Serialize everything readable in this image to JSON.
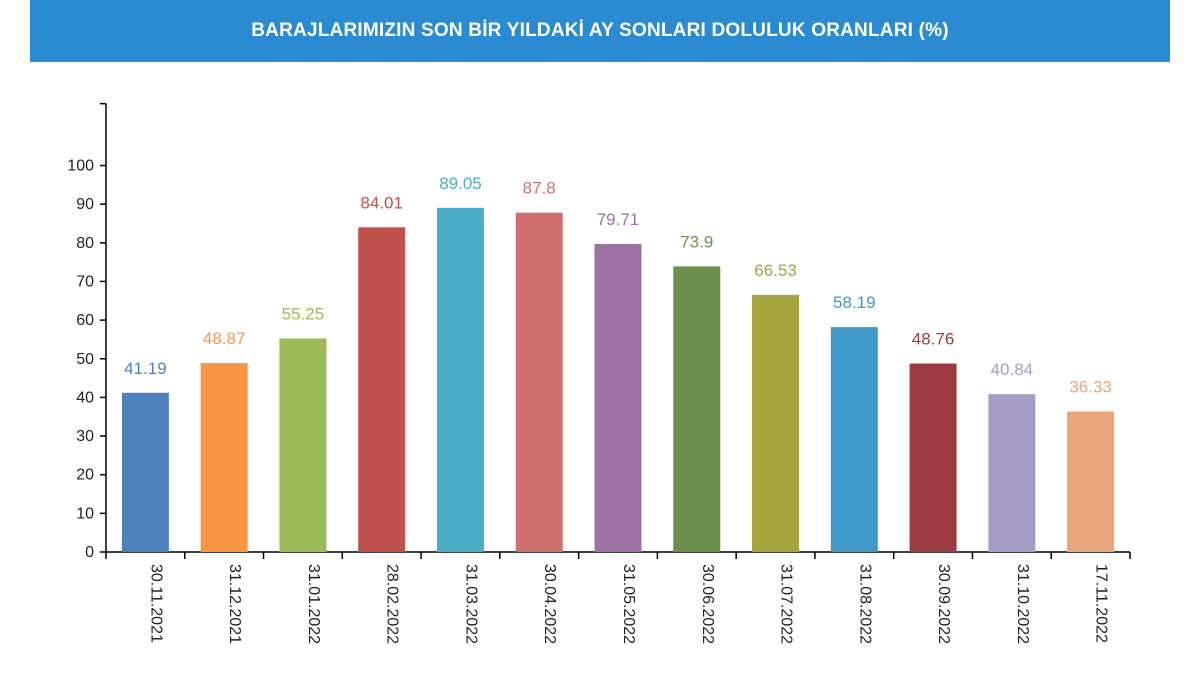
{
  "title": "BARAJLARIMIZIN SON BİR YILDAKİ AY SONLARI DOLULUK ORANLARI (%)",
  "chart_data": {
    "type": "bar",
    "title": "BARAJLARIMIZIN SON BİR YILDAKİ AY SONLARI DOLULUK ORANLARI (%)",
    "xlabel": "",
    "ylabel": "",
    "categories": [
      "30.11.2021",
      "31.12.2021",
      "31.01.2022",
      "28.02.2022",
      "31.03.2022",
      "30.04.2022",
      "31.05.2022",
      "30.06.2022",
      "31.07.2022",
      "31.08.2022",
      "30.09.2022",
      "31.10.2022",
      "17.11.2022"
    ],
    "values": [
      41.19,
      48.87,
      55.25,
      84.01,
      89.05,
      87.8,
      79.71,
      73.9,
      66.53,
      58.19,
      48.76,
      40.84,
      36.33
    ],
    "value_labels": [
      "41.19",
      "48.87",
      "55.25",
      "84.01",
      "89.05",
      "87.8",
      "79.71",
      "73.9",
      "66.53",
      "58.19",
      "48.76",
      "40.84",
      "36.33"
    ],
    "colors": [
      "#4f81bd",
      "#f79646",
      "#9bbb59",
      "#c0504d",
      "#4bacc6",
      "#d0706e",
      "#9b72a2",
      "#6d8f4c",
      "#a6a43d",
      "#3e99c9",
      "#9b3b40",
      "#a59bc3",
      "#e9a57a"
    ],
    "label_colors": [
      "#4f81bd",
      "#f79646",
      "#9bbb59",
      "#c0504d",
      "#4bacc6",
      "#d0706e",
      "#9b72a2",
      "#6d8f4c",
      "#a6a43d",
      "#3e99c9",
      "#9b3b40",
      "#a59bc3",
      "#e9a57a"
    ],
    "yticks": [
      "0",
      "10",
      "20",
      "30",
      "40",
      "50",
      "60",
      "70",
      "80",
      "90",
      "100"
    ],
    "ylim": [
      0,
      116
    ],
    "grid": false,
    "legend": "none"
  }
}
